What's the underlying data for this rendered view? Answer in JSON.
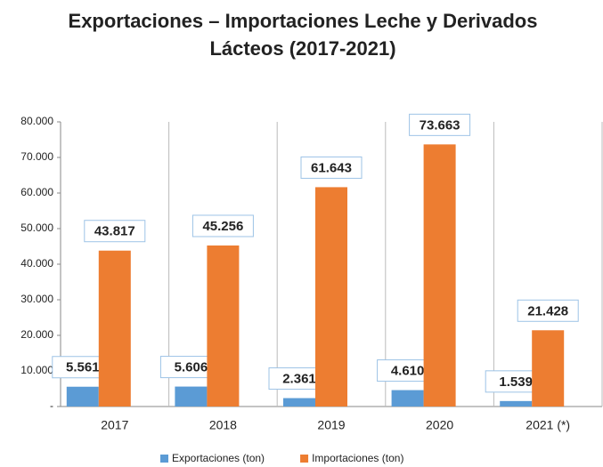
{
  "chart_data": {
    "type": "bar",
    "title": "Exportaciones – Importaciones Leche y Derivados Lácteos (2017-2021)",
    "categories": [
      "2017",
      "2018",
      "2019",
      "2020",
      "2021 (*)"
    ],
    "series": [
      {
        "name": "Exportaciones (ton)",
        "color": "#5b9bd5",
        "values": [
          5561,
          5606,
          2361,
          4610,
          1539
        ],
        "value_labels": [
          "5.561",
          "5.606",
          "2.361",
          "4.610",
          "1.539"
        ]
      },
      {
        "name": "Importaciones (ton)",
        "color": "#ed7d31",
        "values": [
          43817,
          45256,
          61643,
          73663,
          21428
        ],
        "value_labels": [
          "43.817",
          "45.256",
          "61.643",
          "73.663",
          "21.428"
        ]
      }
    ],
    "ylim": [
      0,
      80000
    ],
    "yticks": [
      {
        "value": 0,
        "label": "-"
      },
      {
        "value": 10000,
        "label": "10.000"
      },
      {
        "value": 20000,
        "label": "20.000"
      },
      {
        "value": 30000,
        "label": "30.000"
      },
      {
        "value": 40000,
        "label": "40.000"
      },
      {
        "value": 50000,
        "label": "50.000"
      },
      {
        "value": 60000,
        "label": "60.000"
      },
      {
        "value": 70000,
        "label": "70.000"
      },
      {
        "value": 80000,
        "label": "80.000"
      }
    ],
    "legend": "bottom"
  }
}
